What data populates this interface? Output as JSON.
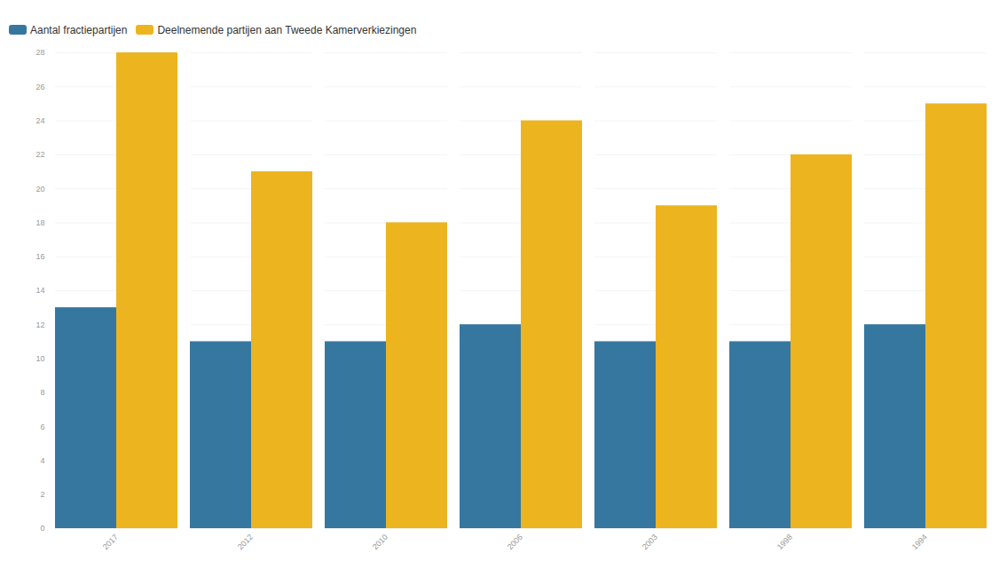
{
  "chart_data": {
    "type": "bar",
    "categories": [
      "2017",
      "2012",
      "2010",
      "2006",
      "2003",
      "1998",
      "1994"
    ],
    "series": [
      {
        "name": "Aantal fractiepartijen",
        "color": "#3677a0",
        "values": [
          13,
          11,
          11,
          12,
          11,
          11,
          12
        ]
      },
      {
        "name": "Deelnemende partijen aan Tweede Kamerverkiezingen",
        "color": "#ecb41f",
        "values": [
          28,
          21,
          18,
          24,
          19,
          22,
          25
        ]
      }
    ],
    "ylim": [
      0,
      28
    ],
    "yticks": [
      0,
      2,
      4,
      6,
      8,
      10,
      12,
      14,
      16,
      18,
      20,
      22,
      24,
      26,
      28
    ],
    "grid": true,
    "legend": "top-left"
  }
}
